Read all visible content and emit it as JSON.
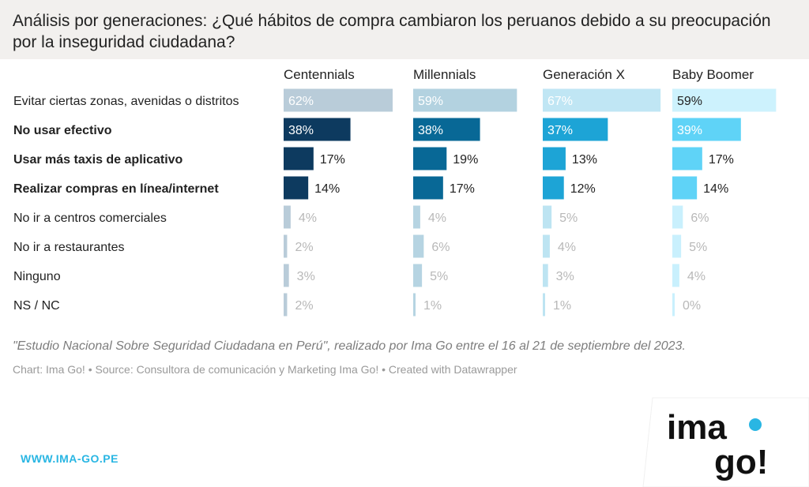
{
  "title": "Análisis por generaciones: ¿Qué hábitos de compra cambiaron los peruanos debido a su preocupación por la inseguridad ciudadana?",
  "note": "\"Estudio Nacional Sobre Seguridad Ciudadana en Perú\", realizado por Ima Go entre el 16 al 21 de septiembre del 2023.",
  "credits": "Chart: Ima Go! • Source: Consultora de comunicación y Marketing Ima Go! • Created with Datawrapper",
  "url": "WWW.IMA-GO.PE",
  "logo": {
    "line1": "ima",
    "line2": "go!"
  },
  "chart_data": {
    "type": "bar",
    "orientation": "horizontal",
    "layout": "small-multiples",
    "value_suffix": "%",
    "xlim": [
      0,
      100
    ],
    "grid": false,
    "categories": [
      "Evitar ciertas zonas, avenidas o distritos",
      "No usar efectivo",
      "Usar más taxis de aplicativo",
      "Realizar compras en línea/internet",
      "No ir a centros comerciales",
      "No ir a restaurantes",
      "Ninguno",
      "NS / NC"
    ],
    "highlighted_categories": [
      "No usar efectivo",
      "Usar más taxis de aplicativo",
      "Realizar compras en línea/internet"
    ],
    "series": [
      {
        "name": "Centennials",
        "values": [
          62,
          38,
          17,
          14,
          4,
          2,
          3,
          2
        ],
        "color": "#0d3a5f"
      },
      {
        "name": "Millennials",
        "values": [
          59,
          38,
          19,
          17,
          4,
          6,
          5,
          1
        ],
        "color": "#086896"
      },
      {
        "name": "Generación X",
        "values": [
          67,
          37,
          13,
          12,
          5,
          4,
          3,
          1
        ],
        "color": "#1da4d6"
      },
      {
        "name": "Baby Boomer",
        "values": [
          59,
          39,
          17,
          14,
          6,
          5,
          4,
          0
        ],
        "color": "#5fd3f7"
      }
    ],
    "colors": {
      "muted": [
        "#b9ccd9",
        "#b6d4e2",
        "#bde4f2",
        "#c9f0fd"
      ],
      "first_row": [
        "#b9ccd9",
        "#b3d2e0",
        "#c0e6f4",
        "#cdf2fd"
      ]
    }
  }
}
